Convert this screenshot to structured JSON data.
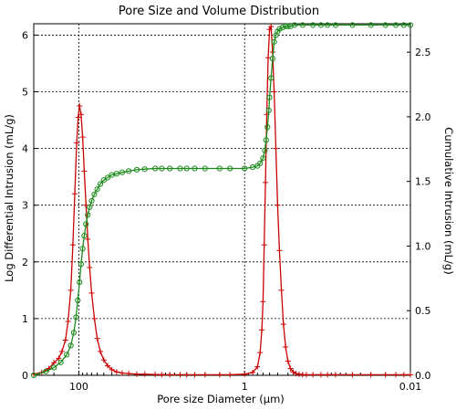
{
  "chart_data": {
    "type": "line",
    "title": "Pore Size and Volume Distribution",
    "xlabel": "Pore size Diameter (µm)",
    "ylabel_left": "Log Differential Intrusion (mL/g)",
    "ylabel_right": "Cumulative Intrusion (mL/g)",
    "x_scale": "log",
    "x_reversed": true,
    "xlim": [
      350,
      0.01
    ],
    "ylim_left": [
      0,
      6.2
    ],
    "ylim_right": [
      0,
      2.72
    ],
    "x_ticks": [
      100,
      1,
      0.01
    ],
    "x_tick_labels": [
      "100",
      "1",
      "0.01"
    ],
    "y_left_ticks": [
      0,
      1,
      2,
      3,
      4,
      5,
      6
    ],
    "y_left_tick_labels": [
      "0",
      "1",
      "2",
      "3",
      "4",
      "5",
      "6"
    ],
    "y_right_ticks": [
      0,
      0.5,
      1.0,
      1.5,
      2.0,
      2.5
    ],
    "y_right_tick_labels": [
      "0.0",
      "0.5",
      "1.0",
      "1.5",
      "2.0",
      "2.5"
    ],
    "grid": true,
    "colors": {
      "differential": "#cc0000",
      "cumulative": "#1a8a1a",
      "grid": "#000000"
    },
    "series": [
      {
        "axis": "left",
        "marker": "plus",
        "x": [
          350,
          280,
          230,
          200,
          175,
          160,
          145,
          135,
          125,
          118,
          112,
          106,
          102,
          98,
          94,
          90,
          86,
          82,
          78,
          74,
          70,
          65,
          60,
          55,
          50,
          45,
          40,
          35,
          30,
          25,
          20,
          16,
          12,
          10,
          8,
          6,
          5,
          4,
          3,
          2,
          1.5,
          1.0,
          0.8,
          0.7,
          0.65,
          0.62,
          0.6,
          0.58,
          0.56,
          0.54,
          0.52,
          0.5,
          0.48,
          0.46,
          0.44,
          0.42,
          0.4,
          0.38,
          0.36,
          0.34,
          0.32,
          0.3,
          0.28,
          0.26,
          0.24,
          0.22,
          0.2,
          0.18,
          0.15,
          0.12,
          0.1,
          0.08,
          0.05,
          0.03,
          0.02,
          0.015,
          0.012,
          0.01
        ],
        "y": [
          0.02,
          0.05,
          0.12,
          0.22,
          0.3,
          0.42,
          0.62,
          0.95,
          1.5,
          2.3,
          3.2,
          4.1,
          4.55,
          4.75,
          4.6,
          4.2,
          3.6,
          3.0,
          2.4,
          1.9,
          1.45,
          1.0,
          0.65,
          0.42,
          0.27,
          0.17,
          0.1,
          0.06,
          0.04,
          0.03,
          0.02,
          0.02,
          0.015,
          0.012,
          0.01,
          0.01,
          0.01,
          0.01,
          0.01,
          0.01,
          0.01,
          0.02,
          0.05,
          0.15,
          0.4,
          0.8,
          1.3,
          2.3,
          3.4,
          4.6,
          5.6,
          6.1,
          6.15,
          5.7,
          5.0,
          4.0,
          3.0,
          2.2,
          1.5,
          0.9,
          0.5,
          0.25,
          0.12,
          0.06,
          0.03,
          0.02,
          0.01,
          0.01,
          0.01,
          0.01,
          0.01,
          0.01,
          0.01,
          0.01,
          0.01,
          0.01,
          0.01,
          0.01
        ]
      },
      {
        "axis": "right",
        "marker": "circle",
        "x": [
          350,
          250,
          200,
          165,
          140,
          125,
          115,
          108,
          103,
          98,
          94,
          90,
          86,
          82,
          78,
          74,
          70,
          65,
          60,
          55,
          50,
          45,
          40,
          35,
          30,
          25,
          20,
          16,
          12,
          10,
          8,
          6,
          5,
          4,
          3,
          2,
          1.5,
          1.0,
          0.8,
          0.7,
          0.65,
          0.6,
          0.57,
          0.55,
          0.53,
          0.51,
          0.5,
          0.48,
          0.46,
          0.44,
          0.42,
          0.4,
          0.38,
          0.35,
          0.32,
          0.3,
          0.28,
          0.25,
          0.2,
          0.15,
          0.12,
          0.1,
          0.08,
          0.05,
          0.03,
          0.02,
          0.015,
          0.012,
          0.01
        ],
        "y": [
          0.0,
          0.03,
          0.06,
          0.1,
          0.16,
          0.23,
          0.33,
          0.45,
          0.58,
          0.72,
          0.86,
          0.98,
          1.08,
          1.17,
          1.24,
          1.3,
          1.35,
          1.4,
          1.44,
          1.48,
          1.51,
          1.53,
          1.55,
          1.56,
          1.57,
          1.58,
          1.59,
          1.595,
          1.6,
          1.6,
          1.6,
          1.6,
          1.6,
          1.6,
          1.6,
          1.6,
          1.6,
          1.6,
          1.61,
          1.62,
          1.64,
          1.68,
          1.74,
          1.82,
          1.92,
          2.05,
          2.15,
          2.3,
          2.45,
          2.58,
          2.63,
          2.66,
          2.68,
          2.69,
          2.7,
          2.7,
          2.7,
          2.71,
          2.71,
          2.71,
          2.71,
          2.71,
          2.71,
          2.71,
          2.71,
          2.71,
          2.71,
          2.71,
          2.71
        ]
      }
    ]
  }
}
